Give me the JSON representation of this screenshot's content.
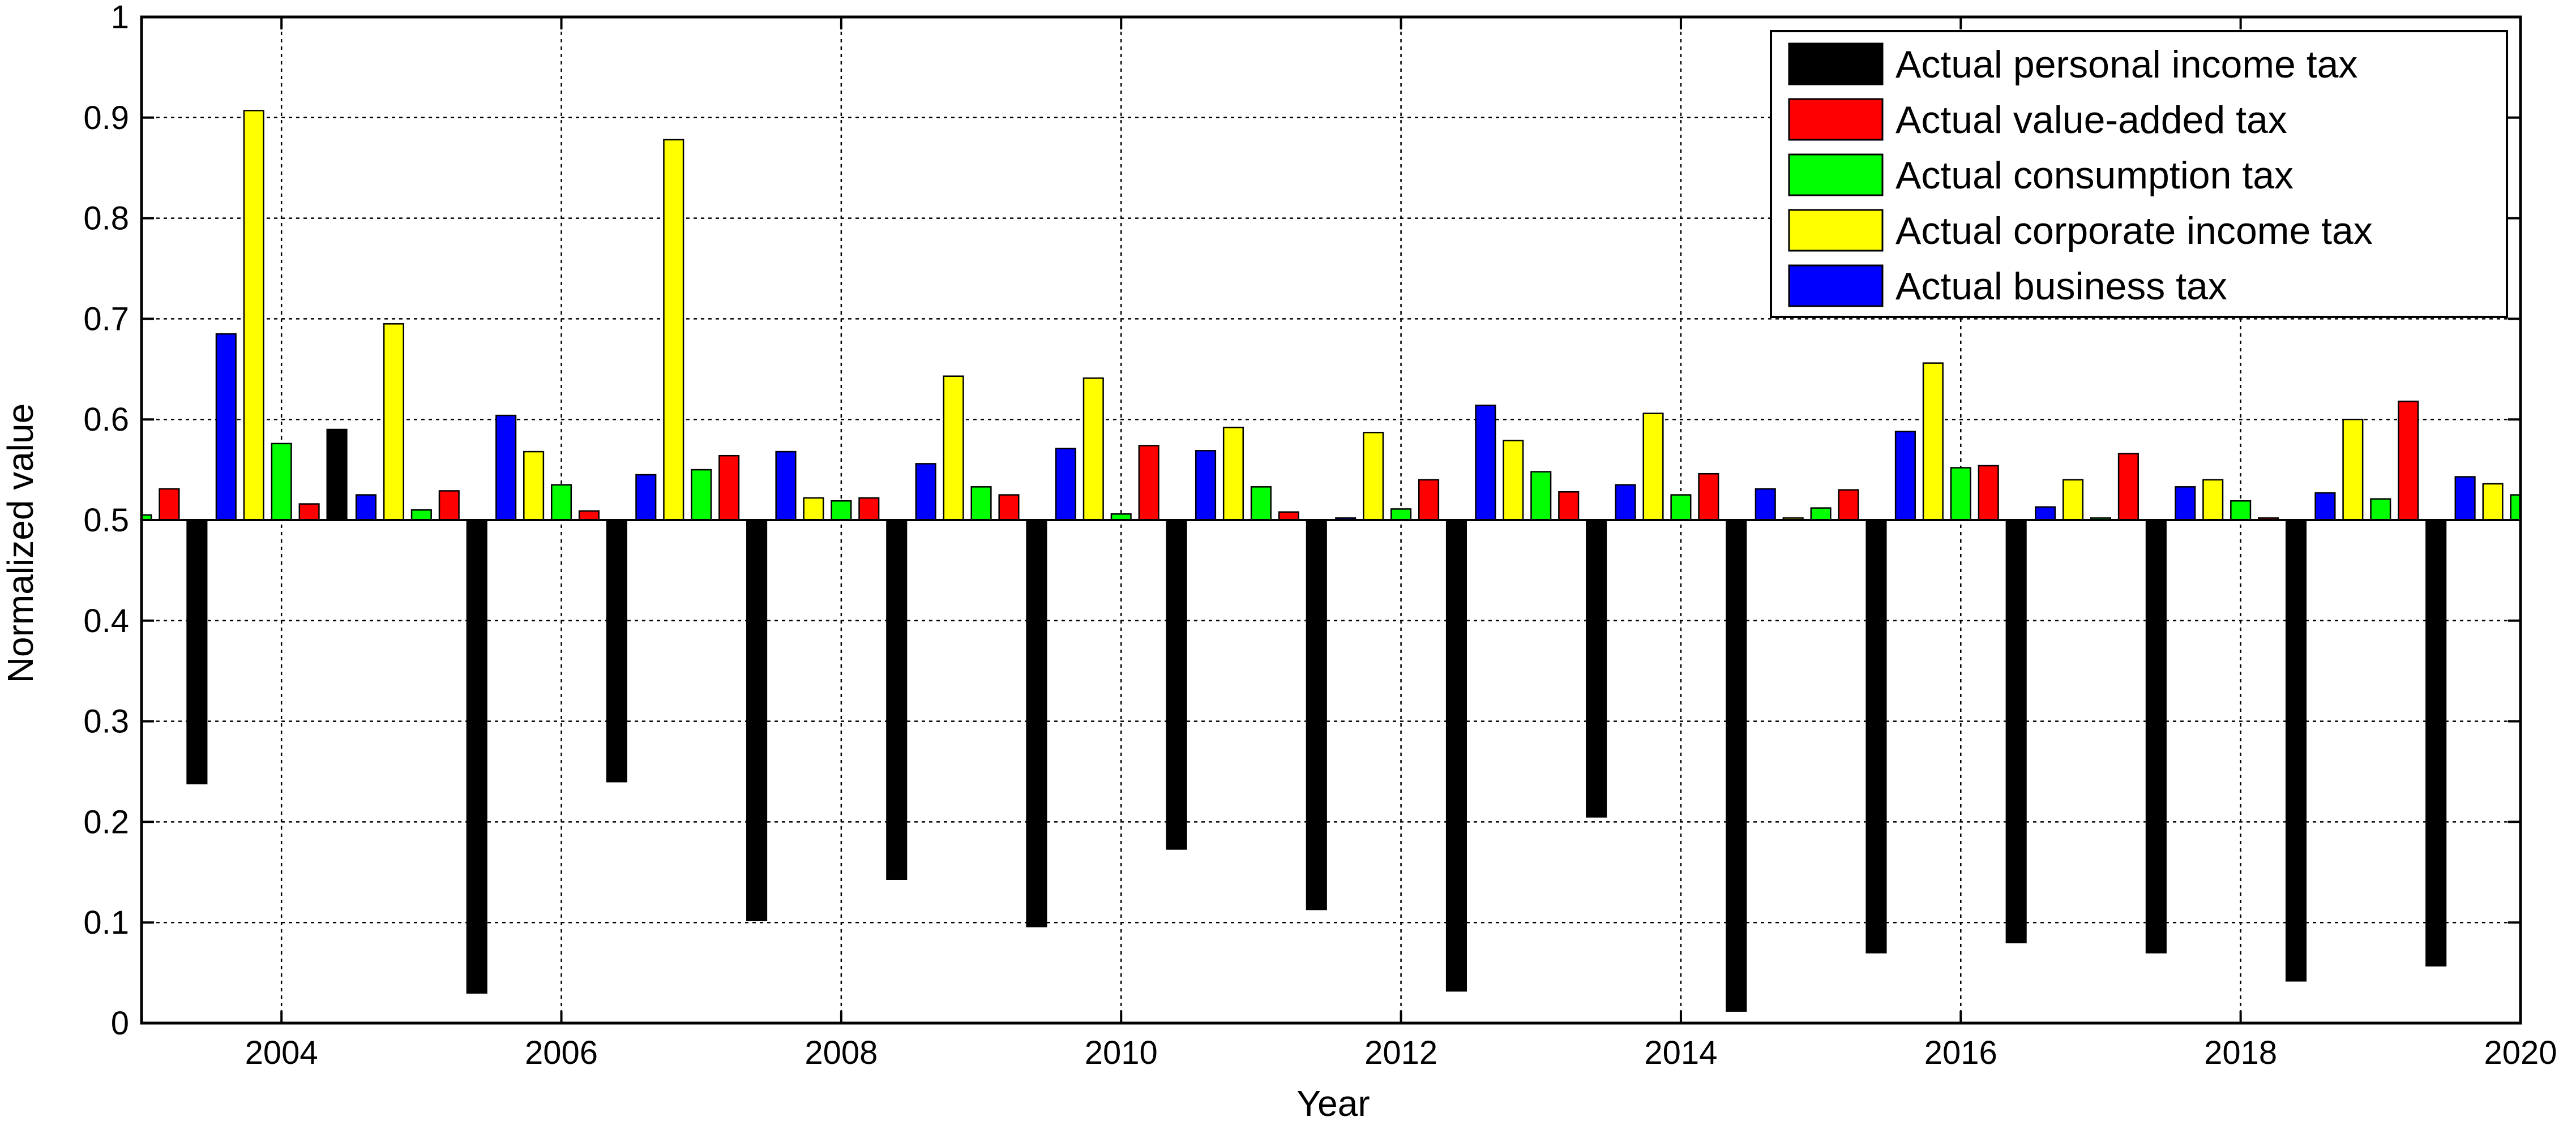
{
  "chart_data": {
    "type": "bar",
    "title": "",
    "xlabel": "Year",
    "ylabel": "Normalized value",
    "baseline": 0.5,
    "xlim": [
      2003,
      2020
    ],
    "ylim": [
      0,
      1
    ],
    "xticks": [
      "2004",
      "2006",
      "2008",
      "2010",
      "2012",
      "2014",
      "2016",
      "2018",
      "2020"
    ],
    "yticks": [
      "0",
      "0.1",
      "0.2",
      "0.3",
      "0.4",
      "0.5",
      "0.6",
      "0.7",
      "0.8",
      "0.9",
      "1"
    ],
    "grid": true,
    "legend_position": "top-right",
    "legend": [
      {
        "name": "Actual personal income tax",
        "color": "#000000"
      },
      {
        "name": "Actual value-added tax",
        "color": "#ff0000"
      },
      {
        "name": "Actual consumption tax",
        "color": "#00ff00"
      },
      {
        "name": "Actual corporate income tax",
        "color": "#ffff00"
      },
      {
        "name": "Actual business tax",
        "color": "#0000ff"
      }
    ],
    "x": [
      2003,
      2004,
      2005,
      2006,
      2007,
      2008,
      2009,
      2010,
      2011,
      2012,
      2013,
      2014,
      2015,
      2016,
      2017,
      2018,
      2019,
      2020
    ],
    "series": [
      {
        "name": "Actual business tax",
        "color": "#0000ff",
        "values": [
          null,
          0.685,
          0.525,
          0.604,
          0.545,
          0.568,
          0.556,
          0.571,
          0.569,
          0.502,
          0.614,
          0.535,
          0.531,
          0.588,
          0.513,
          0.533,
          0.527,
          0.543
        ]
      },
      {
        "name": "Actual corporate income tax",
        "color": "#ffff00",
        "values": [
          null,
          0.907,
          0.695,
          0.568,
          0.878,
          0.522,
          0.643,
          0.641,
          0.592,
          0.587,
          0.579,
          0.606,
          0.502,
          0.656,
          0.54,
          0.54,
          0.6,
          0.536
        ]
      },
      {
        "name": "Actual consumption tax",
        "color": "#00ff00",
        "values": [
          0.505,
          0.576,
          0.51,
          0.535,
          0.55,
          0.519,
          0.533,
          0.506,
          0.533,
          0.511,
          0.548,
          0.525,
          0.512,
          0.552,
          0.502,
          0.519,
          0.521,
          0.525
        ]
      },
      {
        "name": "Actual value-added tax",
        "color": "#ff0000",
        "values": [
          0.531,
          0.516,
          0.529,
          0.509,
          0.564,
          0.522,
          0.525,
          0.574,
          0.508,
          0.54,
          0.528,
          0.546,
          0.53,
          0.554,
          0.566,
          0.502,
          0.618,
          null
        ]
      },
      {
        "name": "Actual personal income tax",
        "color": "#000000",
        "values": [
          0.238,
          0.59,
          0.03,
          0.24,
          0.102,
          0.143,
          0.096,
          0.173,
          0.113,
          0.032,
          0.205,
          0.012,
          0.07,
          0.08,
          0.07,
          0.042,
          0.057,
          null
        ]
      }
    ]
  }
}
